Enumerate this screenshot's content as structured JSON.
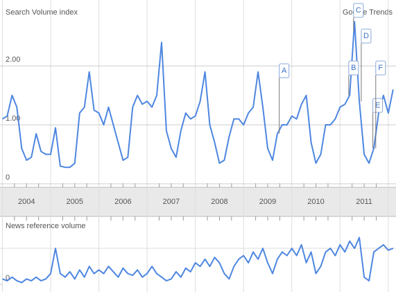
{
  "chart_data": [
    {
      "type": "line",
      "title": "Search Volume index",
      "subtitle": "Google Trends",
      "x": [
        2004.0,
        2004.1,
        2004.2,
        2004.3,
        2004.4,
        2004.5,
        2004.6,
        2004.7,
        2004.8,
        2004.9,
        2005.0,
        2005.1,
        2005.2,
        2005.3,
        2005.4,
        2005.5,
        2005.6,
        2005.7,
        2005.8,
        2005.9,
        2006.0,
        2006.1,
        2006.2,
        2006.3,
        2006.4,
        2006.5,
        2006.6,
        2006.7,
        2006.8,
        2006.9,
        2007.0,
        2007.1,
        2007.2,
        2007.3,
        2007.4,
        2007.5,
        2007.6,
        2007.7,
        2007.8,
        2007.9,
        2008.0,
        2008.1,
        2008.2,
        2008.3,
        2008.4,
        2008.5,
        2008.6,
        2008.7,
        2008.8,
        2008.9,
        2009.0,
        2009.1,
        2009.2,
        2009.3,
        2009.4,
        2009.5,
        2009.6,
        2009.7,
        2009.8,
        2009.9,
        2010.0,
        2010.1,
        2010.2,
        2010.3,
        2010.4,
        2010.5,
        2010.6,
        2010.7,
        2010.8,
        2010.9,
        2011.0,
        2011.1,
        2011.2,
        2011.3,
        2011.4,
        2011.5,
        2011.6,
        2011.7,
        2011.8,
        2011.9,
        2012.0,
        2012.1
      ],
      "series": [
        {
          "color": "#4d86e0",
          "values": [
            1.1,
            1.15,
            1.5,
            1.3,
            0.6,
            0.4,
            0.45,
            0.85,
            0.55,
            0.5,
            0.5,
            0.95,
            0.3,
            0.28,
            0.28,
            0.35,
            1.2,
            1.3,
            1.9,
            1.25,
            1.2,
            1.0,
            1.3,
            1.0,
            0.7,
            0.4,
            0.45,
            1.3,
            1.5,
            1.35,
            1.4,
            1.3,
            1.5,
            2.4,
            0.9,
            0.6,
            0.45,
            0.9,
            1.2,
            1.1,
            1.15,
            1.4,
            1.9,
            1.0,
            0.7,
            0.35,
            0.4,
            0.8,
            1.1,
            1.1,
            1.0,
            1.2,
            1.3,
            1.9,
            1.3,
            0.6,
            0.4,
            0.85,
            1.0,
            1.0,
            1.15,
            1.1,
            1.35,
            1.5,
            0.7,
            0.35,
            0.5,
            1.0,
            1.0,
            1.1,
            1.3,
            1.35,
            1.5,
            2.75,
            1.4,
            0.5,
            0.35,
            0.6,
            1.2,
            1.5,
            1.2,
            1.6
          ]
        }
      ],
      "xlim": [
        2003.95,
        2012.16
      ],
      "xticks": [
        2004,
        2005,
        2006,
        2007,
        2008,
        2009,
        2010,
        2011
      ],
      "ylim": [
        0,
        3.06
      ],
      "yticks": [
        0,
        {
          "value": 1,
          "label": "1.00"
        },
        {
          "value": 2,
          "label": "2.00"
        }
      ],
      "grid": true,
      "annotations": [
        {
          "label": "A",
          "x": 2009.74
        },
        {
          "label": "B",
          "x": 2011.18
        },
        {
          "label": "C",
          "x": 2011.28
        },
        {
          "label": "D",
          "x": 2011.44
        },
        {
          "label": "E",
          "x": 2011.68
        },
        {
          "label": "F",
          "x": 2011.74
        }
      ]
    },
    {
      "type": "line",
      "title": "News reference volume",
      "x": [
        2004.0,
        2004.1,
        2004.2,
        2004.3,
        2004.4,
        2004.5,
        2004.6,
        2004.7,
        2004.8,
        2004.9,
        2005.0,
        2005.1,
        2005.2,
        2005.3,
        2005.4,
        2005.5,
        2005.6,
        2005.7,
        2005.8,
        2005.9,
        2006.0,
        2006.1,
        2006.2,
        2006.3,
        2006.4,
        2006.5,
        2006.6,
        2006.7,
        2006.8,
        2006.9,
        2007.0,
        2007.1,
        2007.2,
        2007.3,
        2007.4,
        2007.5,
        2007.6,
        2007.7,
        2007.8,
        2007.9,
        2008.0,
        2008.1,
        2008.2,
        2008.3,
        2008.4,
        2008.5,
        2008.6,
        2008.7,
        2008.8,
        2008.9,
        2009.0,
        2009.1,
        2009.2,
        2009.3,
        2009.4,
        2009.5,
        2009.6,
        2009.7,
        2009.8,
        2009.9,
        2010.0,
        2010.1,
        2010.2,
        2010.3,
        2010.4,
        2010.5,
        2010.6,
        2010.7,
        2010.8,
        2010.9,
        2011.0,
        2011.1,
        2011.2,
        2011.3,
        2011.4,
        2011.5,
        2011.6,
        2011.7,
        2011.8,
        2011.9,
        2012.0,
        2012.1
      ],
      "series": [
        {
          "color": "#4d86e0",
          "values": [
            0.15,
            0.1,
            0.2,
            0.1,
            0.05,
            0.15,
            0.1,
            0.2,
            0.1,
            0.15,
            0.3,
            1.0,
            0.3,
            0.2,
            0.35,
            0.15,
            0.4,
            0.2,
            0.5,
            0.3,
            0.4,
            0.3,
            0.5,
            0.35,
            0.2,
            0.45,
            0.3,
            0.25,
            0.4,
            0.2,
            0.3,
            0.5,
            0.3,
            0.2,
            0.1,
            0.15,
            0.35,
            0.2,
            0.45,
            0.35,
            0.6,
            0.5,
            0.7,
            0.5,
            0.75,
            0.6,
            0.3,
            0.15,
            0.5,
            0.7,
            0.8,
            0.6,
            0.9,
            0.7,
            1.0,
            0.6,
            0.3,
            0.7,
            0.9,
            0.8,
            1.0,
            0.8,
            1.1,
            0.6,
            0.9,
            0.3,
            0.5,
            0.9,
            1.0,
            0.8,
            1.1,
            0.9,
            1.2,
            1.0,
            1.3,
            0.2,
            0.1,
            0.9,
            1.0,
            1.1,
            0.95,
            1.0
          ]
        }
      ],
      "xlim": [
        2003.95,
        2012.16
      ],
      "ylim": [
        0,
        1.85
      ],
      "yticks": [
        0
      ]
    }
  ]
}
